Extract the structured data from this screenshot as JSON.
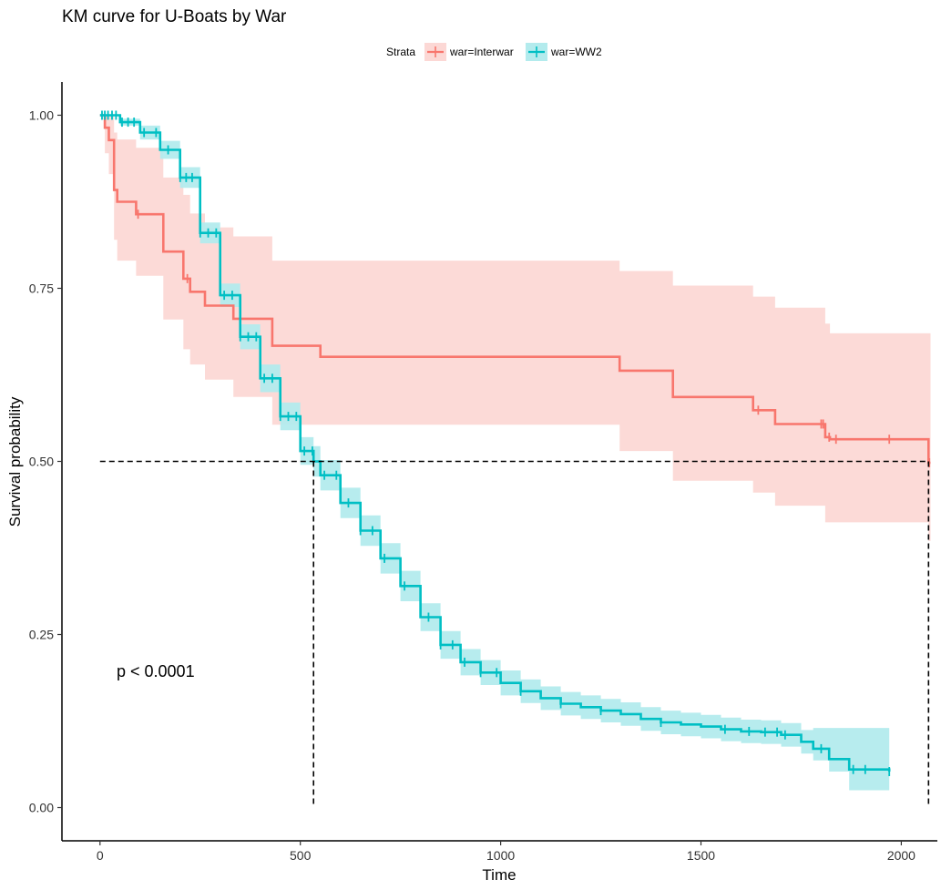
{
  "chart_data": {
    "type": "line",
    "subtype": "kaplan-meier step",
    "title": "KM curve for U-Boats by War",
    "xlabel": "Time",
    "ylabel": "Survival probability",
    "xlim": [
      -95,
      2090
    ],
    "ylim": [
      -0.048,
      1.048
    ],
    "x_ticks": [
      0,
      500,
      1000,
      1500,
      2000
    ],
    "x_tick_labels": [
      "0",
      "500",
      "1000",
      "1500",
      "2000"
    ],
    "y_ticks": [
      0,
      0.25,
      0.5,
      0.75,
      1.0
    ],
    "y_tick_labels": [
      "0.00",
      "0.25",
      "0.50",
      "0.75",
      "1.00"
    ],
    "legend": {
      "title": "Strata",
      "position": "top",
      "entries": [
        "war=Interwar",
        "war=WW2"
      ]
    },
    "annotation": "p < 0.0001",
    "median_line_y": 0.5,
    "median_times": [
      533,
      2068
    ],
    "series": [
      {
        "name": "war=Interwar",
        "color": "#F8766D",
        "ci_fill": "#FCD8D5",
        "x": [
          0,
          12,
          22,
          35,
          43,
          90,
          158,
          208,
          225,
          262,
          333,
          430,
          550,
          1297,
          1430,
          1630,
          1685,
          1810,
          1822,
          2068
        ],
        "survival": [
          1.0,
          0.982,
          0.964,
          0.892,
          0.875,
          0.857,
          0.803,
          0.764,
          0.745,
          0.725,
          0.706,
          0.667,
          0.651,
          0.631,
          0.593,
          0.574,
          0.554,
          0.535,
          0.532,
          0.498
        ],
        "lower": [
          1.0,
          0.945,
          0.915,
          0.82,
          0.79,
          0.768,
          0.705,
          0.662,
          0.64,
          0.618,
          0.593,
          0.553,
          0.553,
          0.515,
          0.472,
          0.455,
          0.436,
          0.412,
          0.412,
          0.385
        ],
        "upper": [
          1.0,
          1.0,
          1.0,
          0.975,
          0.965,
          0.953,
          0.91,
          0.885,
          0.858,
          0.838,
          0.825,
          0.79,
          0.79,
          0.775,
          0.754,
          0.738,
          0.722,
          0.699,
          0.685,
          0.685
        ],
        "censor_times": [
          95,
          218,
          1643,
          1800,
          1805,
          1820,
          1837,
          1970,
          2070
        ]
      },
      {
        "name": "war=WW2",
        "color": "#00BFC4",
        "ci_fill": "#B3EBED",
        "x": [
          0,
          50,
          100,
          150,
          200,
          250,
          300,
          350,
          400,
          450,
          500,
          533,
          550,
          600,
          650,
          700,
          750,
          800,
          850,
          900,
          950,
          1000,
          1050,
          1100,
          1150,
          1200,
          1250,
          1300,
          1350,
          1400,
          1450,
          1500,
          1550,
          1600,
          1650,
          1700,
          1750,
          1780,
          1820,
          1870,
          1970
        ],
        "survival": [
          1.0,
          0.99,
          0.975,
          0.95,
          0.91,
          0.83,
          0.74,
          0.68,
          0.62,
          0.565,
          0.515,
          0.5,
          0.48,
          0.44,
          0.4,
          0.36,
          0.32,
          0.275,
          0.235,
          0.21,
          0.195,
          0.18,
          0.168,
          0.158,
          0.15,
          0.145,
          0.14,
          0.135,
          0.128,
          0.123,
          0.12,
          0.117,
          0.113,
          0.11,
          0.109,
          0.105,
          0.095,
          0.085,
          0.07,
          0.055,
          0.052
        ],
        "lower": [
          1.0,
          0.985,
          0.965,
          0.937,
          0.895,
          0.815,
          0.723,
          0.662,
          0.6,
          0.545,
          0.495,
          0.478,
          0.458,
          0.418,
          0.378,
          0.338,
          0.298,
          0.255,
          0.215,
          0.191,
          0.177,
          0.162,
          0.151,
          0.141,
          0.133,
          0.128,
          0.123,
          0.118,
          0.111,
          0.106,
          0.103,
          0.1,
          0.096,
          0.093,
          0.092,
          0.088,
          0.078,
          0.068,
          0.052,
          0.025,
          0.025
        ],
        "upper": [
          1.0,
          0.995,
          0.985,
          0.963,
          0.925,
          0.845,
          0.757,
          0.698,
          0.64,
          0.585,
          0.535,
          0.522,
          0.502,
          0.462,
          0.422,
          0.382,
          0.342,
          0.295,
          0.255,
          0.229,
          0.213,
          0.198,
          0.185,
          0.175,
          0.167,
          0.162,
          0.157,
          0.152,
          0.145,
          0.14,
          0.137,
          0.134,
          0.13,
          0.127,
          0.126,
          0.122,
          0.112,
          0.115,
          0.115,
          0.115,
          0.115
        ],
        "censor_times": [
          5,
          12,
          20,
          30,
          40,
          55,
          70,
          85,
          110,
          140,
          170,
          200,
          215,
          230,
          250,
          270,
          290,
          310,
          330,
          350,
          370,
          390,
          410,
          430,
          450,
          470,
          490,
          510,
          530,
          560,
          590,
          620,
          650,
          680,
          710,
          760,
          820,
          850,
          880,
          910,
          950,
          990,
          1050,
          1150,
          1250,
          1400,
          1560,
          1620,
          1660,
          1690,
          1710,
          1800,
          1880,
          1910,
          1970
        ]
      }
    ]
  }
}
